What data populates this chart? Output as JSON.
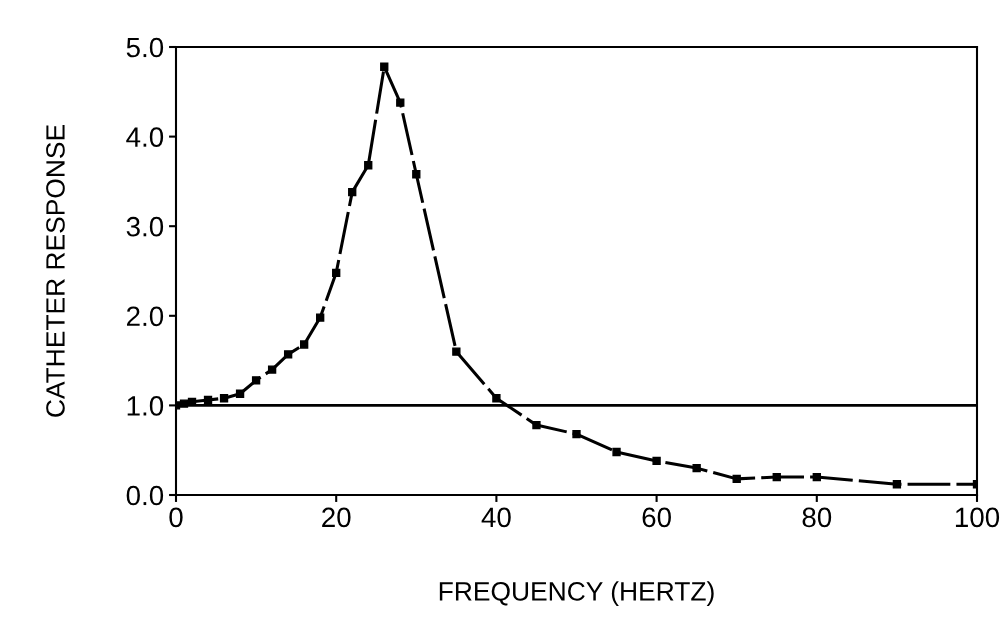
{
  "chart_data": {
    "type": "line",
    "xlabel": "FREQUENCY (HERTZ)",
    "ylabel": "CATHETER RESPONSE",
    "x": [
      0,
      1,
      2,
      4,
      6,
      8,
      10,
      12,
      14,
      16,
      18,
      20,
      22,
      24,
      26,
      28,
      30,
      35,
      40,
      45,
      50,
      55,
      60,
      65,
      70,
      75,
      80,
      90,
      100
    ],
    "series": [
      {
        "color": "#000000",
        "values": [
          1.0,
          1.02,
          1.04,
          1.06,
          1.08,
          1.13,
          1.28,
          1.4,
          1.57,
          1.68,
          1.98,
          2.48,
          3.38,
          3.68,
          4.78,
          4.38,
          3.58,
          1.6,
          1.08,
          0.78,
          0.68,
          0.48,
          0.38,
          0.3,
          0.18,
          0.2,
          0.2,
          0.12,
          0.12
        ]
      }
    ],
    "xlim": [
      0,
      100
    ],
    "xticks": [
      0,
      20,
      40,
      60,
      80,
      100
    ],
    "ylim": [
      0,
      5
    ],
    "yticks": [
      {
        "value": 0,
        "label": "0.0"
      },
      {
        "value": 1,
        "label": "1.0"
      },
      {
        "value": 2,
        "label": "2.0"
      },
      {
        "value": 3,
        "label": "3.0"
      },
      {
        "value": 4,
        "label": "4.0"
      },
      {
        "value": 5,
        "label": "5.0"
      }
    ],
    "ref_lines": [
      {
        "axis": "y",
        "value": 1,
        "color": "#000000",
        "line_style": "solid"
      }
    ],
    "marker": "square",
    "line_style": "dashed",
    "grid": false,
    "legend": false
  }
}
